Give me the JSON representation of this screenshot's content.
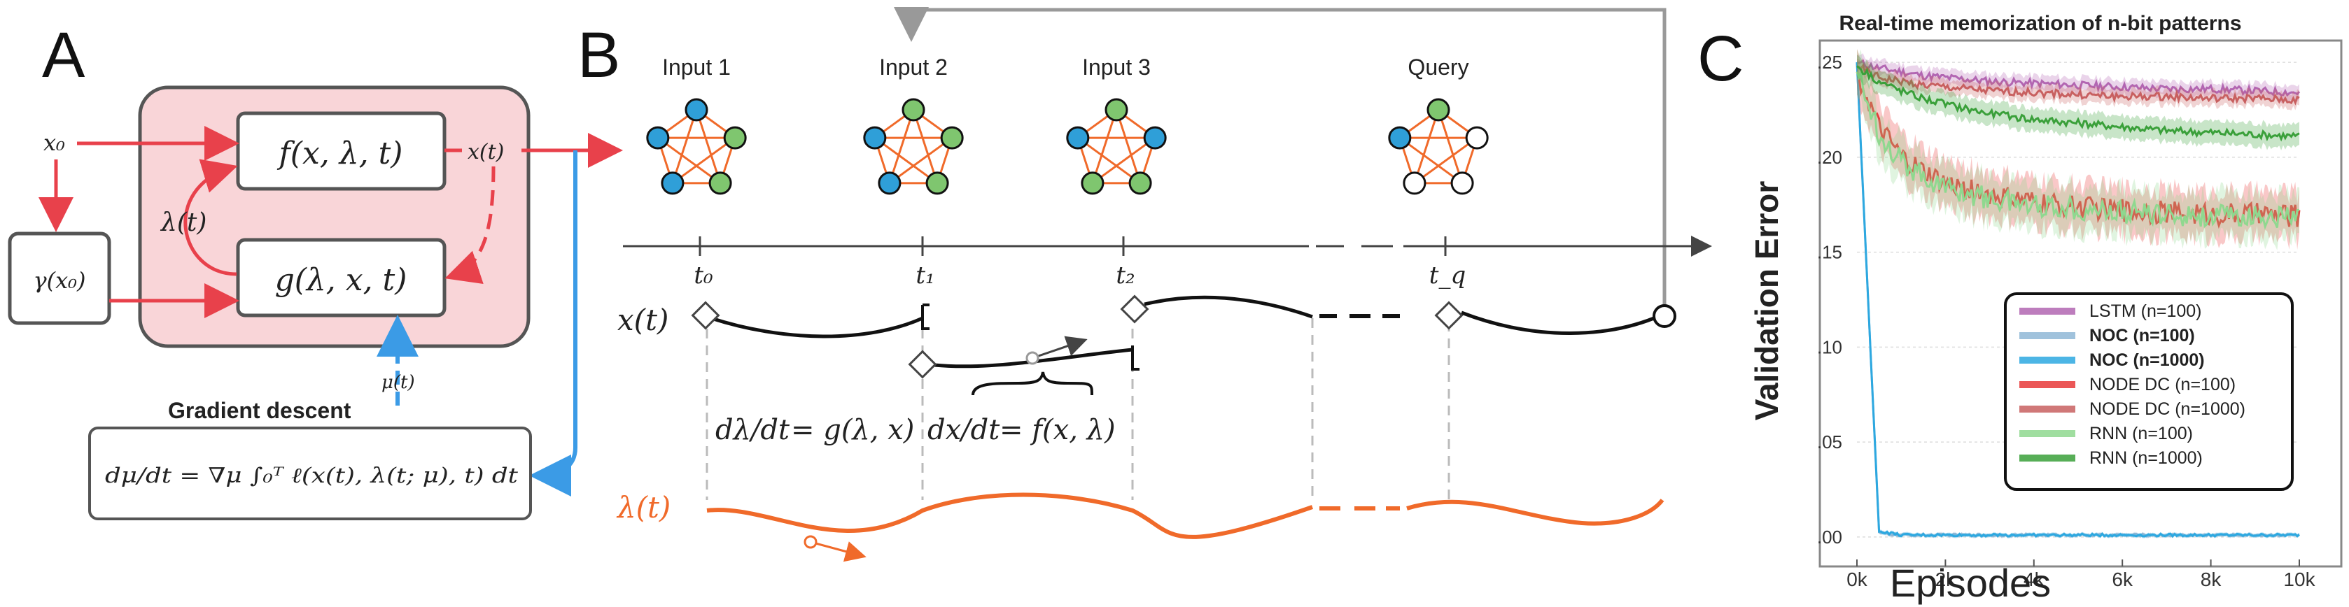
{
  "panel_a": {
    "letter": "A",
    "x0": "x₀",
    "gamma": "γ(x₀)",
    "f_box": "f(x, λ, t)",
    "g_box": "g(λ, x, t)",
    "x_t": "x(t)",
    "lambda_t": "λ(t)",
    "mu_t": "μ(t)",
    "gradient_title": "Gradient descent",
    "gradient_eq": "dμ/dt = ∇μ ∫₀ᵀ ℓ(x(t), λ(t; μ), t) dt"
  },
  "panel_b": {
    "letter": "B",
    "inputs": [
      "Input 1",
      "Input 2",
      "Input 3",
      "Query"
    ],
    "ticks": [
      "t₀",
      "t₁",
      "t₂",
      "t_q"
    ],
    "x_label": "x(t)",
    "lambda_label": "λ(t)",
    "eq1_lhs": "dλ/dt",
    "eq1_rhs": "= g(λ, x)",
    "eq2_lhs": "dx/dt",
    "eq2_rhs": "= f(x, λ)"
  },
  "panel_c": {
    "letter": "C",
    "colors": {
      "lstm": "#b266b2",
      "noc100": "#8fb7d6",
      "noc1000": "#2da8e0",
      "node100": "#e83a3a",
      "node1000": "#c86060",
      "rnn100": "#8fd88f",
      "rnn1000": "#3aa03a"
    }
  },
  "chart_data": {
    "type": "line",
    "title": "Real-time memorization of n-bit patterns",
    "xlabel": "Episodes",
    "ylabel": "Validation Error",
    "xlim": [
      0,
      10000
    ],
    "ylim": [
      -0.01,
      0.26
    ],
    "x_ticks": [
      "0k",
      "2k",
      "4k",
      "6k",
      "8k",
      "10k"
    ],
    "y_ticks": [
      ".00",
      ".05",
      ".10",
      ".15",
      ".20",
      ".25"
    ],
    "legend_position": "lower-right",
    "x": [
      0,
      500,
      1000,
      1500,
      2000,
      3000,
      4000,
      5000,
      6000,
      7000,
      8000,
      9000,
      10000
    ],
    "series": [
      {
        "name": "LSTM (n=100)",
        "values": [
          0.25,
          0.247,
          0.245,
          0.243,
          0.242,
          0.24,
          0.239,
          0.238,
          0.237,
          0.236,
          0.236,
          0.235,
          0.234
        ]
      },
      {
        "name": "NOC (n=100)",
        "values": [
          0.25,
          0.002,
          0.001,
          0.001,
          0.001,
          0.001,
          0.001,
          0.001,
          0.001,
          0.001,
          0.001,
          0.001,
          0.001
        ]
      },
      {
        "name": "NOC (n=1000)",
        "values": [
          0.25,
          0.003,
          0.001,
          0.001,
          0.001,
          0.001,
          0.001,
          0.001,
          0.001,
          0.001,
          0.001,
          0.001,
          0.001
        ]
      },
      {
        "name": "NODE DC (n=100)",
        "values": [
          0.245,
          0.215,
          0.2,
          0.192,
          0.186,
          0.18,
          0.176,
          0.174,
          0.172,
          0.171,
          0.17,
          0.17,
          0.169
        ]
      },
      {
        "name": "NODE DC (n=1000)",
        "values": [
          0.248,
          0.242,
          0.24,
          0.238,
          0.237,
          0.235,
          0.234,
          0.233,
          0.232,
          0.232,
          0.231,
          0.231,
          0.23
        ]
      },
      {
        "name": "RNN (n=100)",
        "values": [
          0.245,
          0.213,
          0.198,
          0.19,
          0.184,
          0.178,
          0.175,
          0.173,
          0.171,
          0.17,
          0.169,
          0.169,
          0.168
        ]
      },
      {
        "name": "RNN (n=1000)",
        "values": [
          0.248,
          0.24,
          0.235,
          0.231,
          0.228,
          0.223,
          0.22,
          0.218,
          0.216,
          0.214,
          0.213,
          0.212,
          0.211
        ]
      }
    ]
  }
}
